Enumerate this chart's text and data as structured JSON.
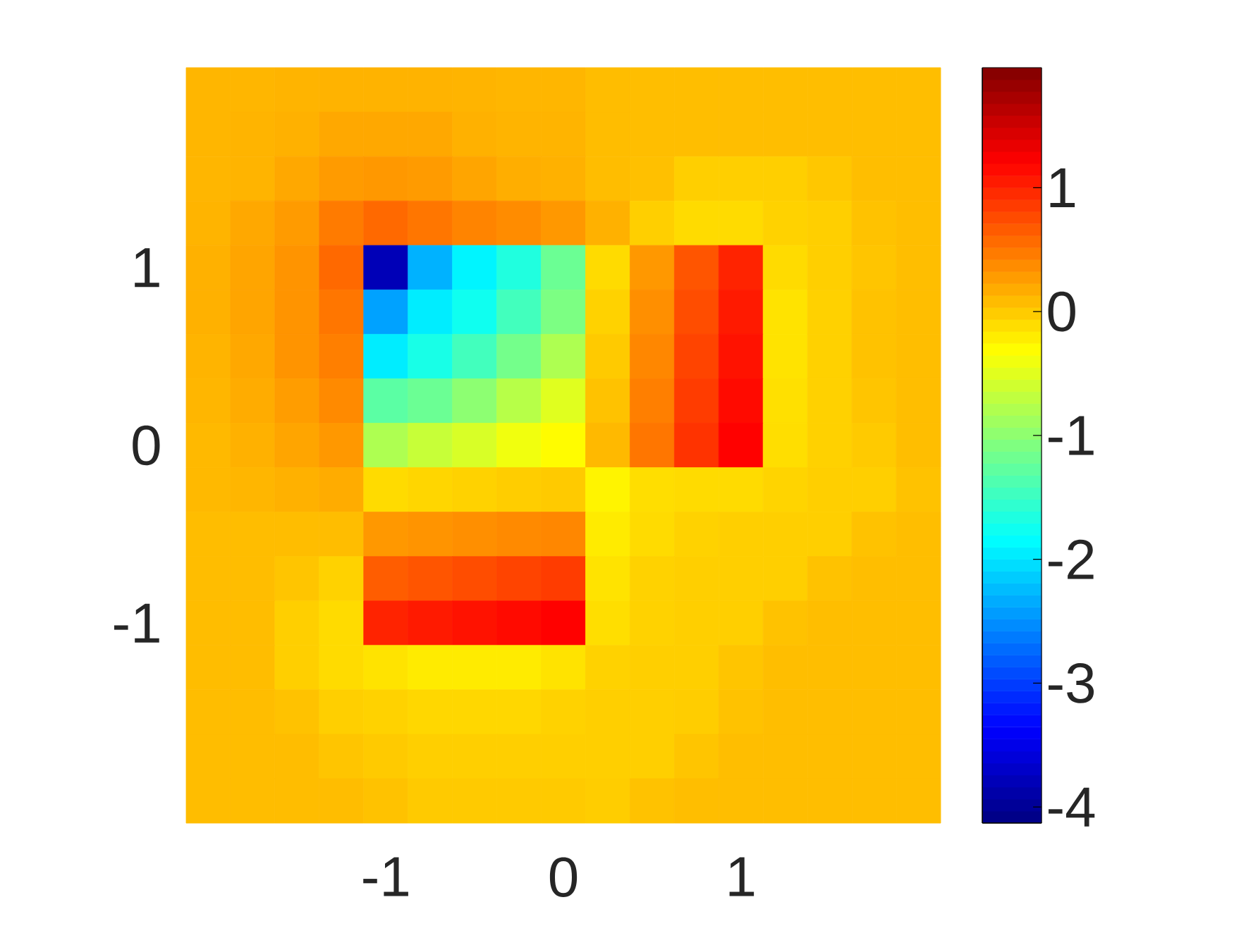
{
  "chart_data": {
    "type": "heatmap",
    "categories": [
      null,
      null,
      null,
      null,
      "-1",
      null,
      null,
      null,
      "0",
      null,
      null,
      null,
      "1",
      null,
      null,
      null,
      null
    ],
    "y_categories": [
      null,
      null,
      null,
      null,
      "1",
      null,
      null,
      null,
      "0",
      null,
      null,
      null,
      "-1",
      null,
      null,
      null,
      null
    ],
    "cells": [
      [
        0.12,
        0.12,
        0.13,
        0.14,
        0.14,
        0.14,
        0.13,
        0.12,
        0.12,
        0.08,
        0.07,
        0.07,
        0.07,
        0.07,
        0.07,
        0.07,
        0.07
      ],
      [
        0.12,
        0.13,
        0.15,
        0.2,
        0.2,
        0.2,
        0.15,
        0.13,
        0.13,
        0.08,
        0.07,
        0.07,
        0.07,
        0.07,
        0.07,
        0.07,
        0.07
      ],
      [
        0.12,
        0.13,
        0.2,
        0.28,
        0.3,
        0.28,
        0.22,
        0.17,
        0.15,
        0.08,
        0.06,
        -0.03,
        -0.03,
        -0.03,
        0.02,
        0.07,
        0.07
      ],
      [
        0.13,
        0.2,
        0.28,
        0.47,
        0.58,
        0.5,
        0.42,
        0.37,
        0.3,
        0.15,
        -0.03,
        -0.1,
        -0.1,
        -0.05,
        -0.03,
        0.05,
        0.07
      ],
      [
        0.15,
        0.22,
        0.32,
        0.58,
        -3.8,
        -2.3,
        -1.9,
        -1.65,
        -1.2,
        -0.1,
        0.3,
        0.7,
        1.0,
        -0.1,
        -0.03,
        0.03,
        0.07
      ],
      [
        0.15,
        0.22,
        0.32,
        0.5,
        -2.4,
        -1.95,
        -1.75,
        -1.45,
        -1.1,
        -0.05,
        0.35,
        0.75,
        1.05,
        -0.15,
        -0.04,
        0.05,
        0.07
      ],
      [
        0.13,
        0.2,
        0.32,
        0.45,
        -1.95,
        -1.7,
        -1.45,
        -1.15,
        -0.8,
        0.0,
        0.4,
        0.8,
        1.1,
        -0.15,
        -0.04,
        0.05,
        0.07
      ],
      [
        0.12,
        0.18,
        0.27,
        0.38,
        -1.3,
        -1.2,
        -1.0,
        -0.75,
        -0.5,
        0.05,
        0.45,
        0.85,
        1.15,
        -0.13,
        -0.04,
        0.03,
        0.07
      ],
      [
        0.1,
        0.15,
        0.22,
        0.3,
        -0.8,
        -0.65,
        -0.55,
        -0.4,
        -0.3,
        0.1,
        0.5,
        0.9,
        1.2,
        -0.12,
        -0.04,
        0.0,
        0.07
      ],
      [
        0.1,
        0.12,
        0.15,
        0.18,
        -0.1,
        -0.07,
        -0.05,
        -0.02,
        0.0,
        -0.25,
        -0.12,
        -0.1,
        -0.1,
        -0.06,
        -0.03,
        -0.03,
        0.05
      ],
      [
        0.08,
        0.08,
        0.08,
        0.08,
        0.3,
        0.32,
        0.35,
        0.38,
        0.4,
        -0.2,
        -0.1,
        -0.05,
        -0.03,
        -0.03,
        -0.03,
        0.05,
        0.07
      ],
      [
        0.08,
        0.08,
        0.03,
        -0.05,
        0.65,
        0.7,
        0.75,
        0.8,
        0.85,
        -0.15,
        -0.05,
        -0.03,
        -0.03,
        -0.03,
        0.05,
        0.07,
        0.07
      ],
      [
        0.08,
        0.08,
        -0.03,
        -0.1,
        1.0,
        1.05,
        1.1,
        1.15,
        1.2,
        -0.12,
        -0.05,
        -0.03,
        -0.03,
        0.05,
        0.07,
        0.07,
        0.07
      ],
      [
        0.08,
        0.08,
        -0.03,
        -0.1,
        -0.15,
        -0.2,
        -0.2,
        -0.2,
        -0.15,
        -0.05,
        -0.03,
        -0.03,
        0.03,
        0.07,
        0.07,
        0.07,
        0.07
      ],
      [
        0.08,
        0.08,
        0.05,
        -0.03,
        -0.05,
        -0.08,
        -0.08,
        -0.08,
        -0.05,
        -0.03,
        -0.03,
        -0.02,
        0.05,
        0.07,
        0.07,
        0.07,
        0.07
      ],
      [
        0.08,
        0.08,
        0.08,
        0.03,
        0.0,
        -0.03,
        -0.03,
        -0.03,
        -0.03,
        -0.03,
        -0.03,
        0.03,
        0.07,
        0.07,
        0.07,
        0.07,
        0.07
      ],
      [
        0.08,
        0.08,
        0.08,
        0.08,
        0.05,
        0.0,
        0.0,
        0.0,
        0.0,
        -0.02,
        0.05,
        0.07,
        0.07,
        0.07,
        0.07,
        0.07,
        0.07
      ]
    ],
    "clim": [
      -4.13,
      1.97
    ],
    "cticks": [
      -4,
      -3,
      -2,
      -1,
      0,
      1
    ]
  }
}
